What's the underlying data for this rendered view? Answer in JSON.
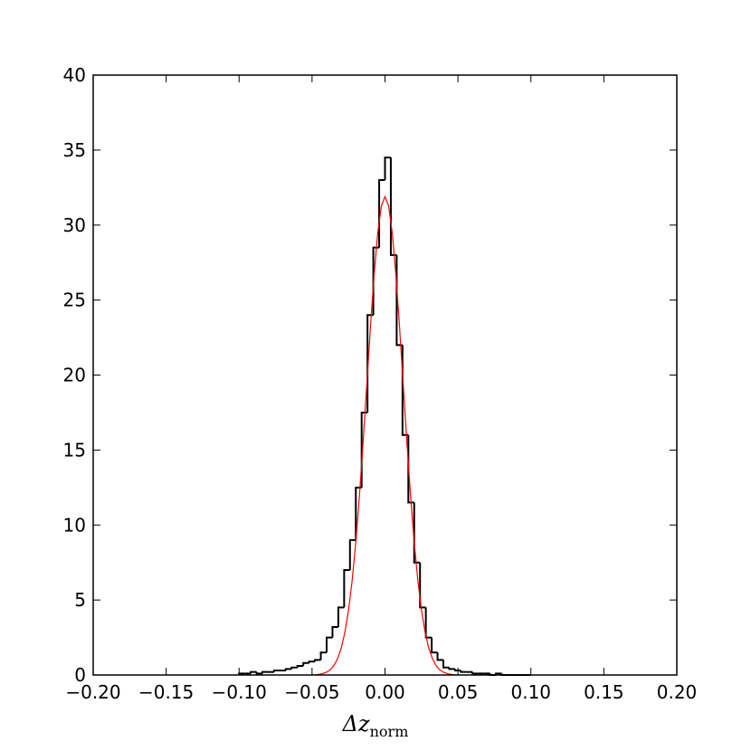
{
  "chart_data": {
    "type": "histogram",
    "xlabel": "Δz",
    "xlabel_sub": "norm",
    "xlim": [
      -0.2,
      0.2
    ],
    "ylim": [
      0,
      40
    ],
    "xticks": [
      {
        "value": -0.2,
        "label": "−0.20"
      },
      {
        "value": -0.15,
        "label": "−0.15"
      },
      {
        "value": -0.1,
        "label": "−0.10"
      },
      {
        "value": -0.05,
        "label": "−0.05"
      },
      {
        "value": 0,
        "label": "0.00"
      },
      {
        "value": 0.05,
        "label": "0.05"
      },
      {
        "value": 0.1,
        "label": "0.10"
      },
      {
        "value": 0.15,
        "label": "0.15"
      },
      {
        "value": 0.2,
        "label": "0.20"
      }
    ],
    "yticks": [
      0,
      5,
      10,
      15,
      20,
      25,
      30,
      35,
      40
    ],
    "color": "#000000",
    "bins": [
      -0.1,
      -0.096,
      -0.092,
      -0.088,
      -0.084,
      -0.08,
      -0.076,
      -0.072,
      -0.068,
      -0.064,
      -0.06,
      -0.056,
      -0.052,
      -0.048,
      -0.044,
      -0.04,
      -0.036,
      -0.032,
      -0.028,
      -0.024,
      -0.02,
      -0.016,
      -0.012,
      -0.008,
      -0.004,
      0,
      0.004,
      0.008,
      0.012,
      0.016,
      0.02,
      0.024,
      0.028,
      0.032,
      0.036,
      0.04,
      0.044,
      0.048,
      0.052,
      0.056,
      0.06,
      0.064,
      0.068,
      0.072,
      0.076,
      0.08,
      0.084,
      0.088,
      0.092,
      0.096,
      0.1
    ],
    "counts": [
      0.1,
      0.1,
      0.2,
      0.1,
      0.2,
      0.2,
      0.3,
      0.3,
      0.4,
      0.5,
      0.6,
      0.8,
      0.9,
      1.0,
      1.5,
      2.5,
      3.2,
      4.5,
      7.0,
      9.0,
      12.5,
      17.5,
      24,
      28.5,
      33,
      34.5,
      28,
      22,
      16,
      11.5,
      7.5,
      4.5,
      2.5,
      1.5,
      1.0,
      0.5,
      0.4,
      0.3,
      0.2,
      0.2,
      0.1,
      0.1,
      0.1,
      0,
      0.1,
      0,
      0,
      0,
      0,
      0
    ],
    "fit": {
      "color": "#ff0000",
      "x": [
        -0.05,
        -0.0475,
        -0.045,
        -0.0425,
        -0.04,
        -0.0375,
        -0.035,
        -0.0325,
        -0.03,
        -0.0275,
        -0.025,
        -0.0225,
        -0.02,
        -0.0175,
        -0.015,
        -0.0125,
        -0.01,
        -0.0075,
        -0.005,
        -0.0025,
        0,
        0.0025,
        0.005,
        0.0075,
        0.01,
        0.0125,
        0.015,
        0.0175,
        0.02,
        0.0225,
        0.025,
        0.0275,
        0.03,
        0.0325,
        0.035,
        0.0375,
        0.04,
        0.0425,
        0.045,
        0.0475,
        0.05
      ],
      "values": [
        0.01,
        0.02,
        0.05,
        0.1,
        0.19,
        0.35,
        0.63,
        1.09,
        1.79,
        2.84,
        4.32,
        6.31,
        8.87,
        11.97,
        15.53,
        19.35,
        23.16,
        26.65,
        29.45,
        31.27,
        31.9,
        31.27,
        29.45,
        26.65,
        23.16,
        19.35,
        15.53,
        11.97,
        8.87,
        6.31,
        4.32,
        2.84,
        1.79,
        1.09,
        0.63,
        0.35,
        0.19,
        0.1,
        0.05,
        0.02,
        0.01
      ]
    }
  }
}
